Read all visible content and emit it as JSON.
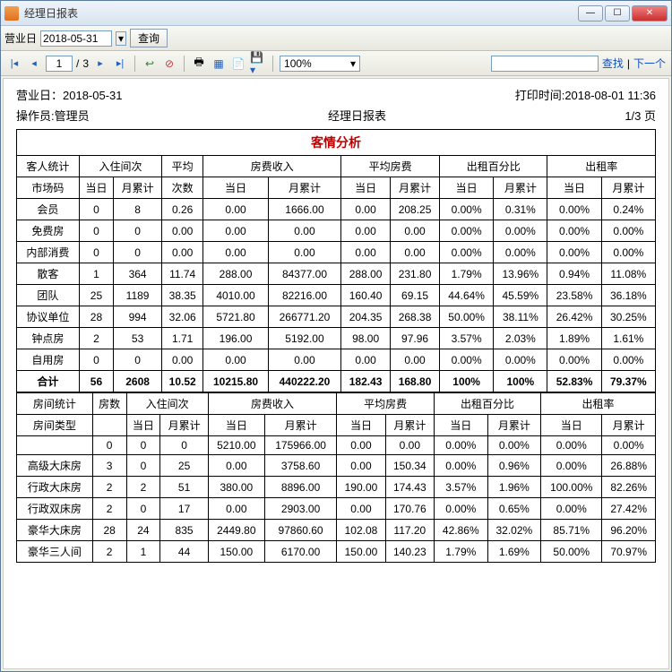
{
  "window": {
    "title": "经理日报表"
  },
  "toolbar1": {
    "label": "营业日",
    "date": "2018-05-31",
    "dateDisplay": "2018-05-31",
    "query": "查询",
    "dropdown": "▾"
  },
  "toolbar2": {
    "page": "1",
    "pages": "3",
    "of": "/",
    "zoom": "100%",
    "find": "查找",
    "next": "下一个"
  },
  "header": {
    "bizDayLabel": "营业日：",
    "bizDay": "2018-05-31",
    "printLabel": "打印时间:",
    "printTime": "2018-08-01 11:36",
    "operator": "操作员:管理员",
    "title": "经理日报表",
    "pager": "1/3 页"
  },
  "sectionTitle": "客情分析",
  "guestHeaders": {
    "c1": "客人统计",
    "c2": "入住间次",
    "c3": "平均",
    "c4": "房费收入",
    "c5": "平均房费",
    "c6": "出租百分比",
    "c7": "出租率",
    "s1": "市场码",
    "day": "当日",
    "mon": "月累计",
    "cnt": "次数"
  },
  "guestRows": [
    [
      "会员",
      "0",
      "8",
      "0.26",
      "0.00",
      "1666.00",
      "0.00",
      "208.25",
      "0.00%",
      "0.31%",
      "0.00%",
      "0.24%"
    ],
    [
      "免费房",
      "0",
      "0",
      "0.00",
      "0.00",
      "0.00",
      "0.00",
      "0.00",
      "0.00%",
      "0.00%",
      "0.00%",
      "0.00%"
    ],
    [
      "内部消费",
      "0",
      "0",
      "0.00",
      "0.00",
      "0.00",
      "0.00",
      "0.00",
      "0.00%",
      "0.00%",
      "0.00%",
      "0.00%"
    ],
    [
      "散客",
      "1",
      "364",
      "11.74",
      "288.00",
      "84377.00",
      "288.00",
      "231.80",
      "1.79%",
      "13.96%",
      "0.94%",
      "11.08%"
    ],
    [
      "团队",
      "25",
      "1189",
      "38.35",
      "4010.00",
      "82216.00",
      "160.40",
      "69.15",
      "44.64%",
      "45.59%",
      "23.58%",
      "36.18%"
    ],
    [
      "协议单位",
      "28",
      "994",
      "32.06",
      "5721.80",
      "266771.20",
      "204.35",
      "268.38",
      "50.00%",
      "38.11%",
      "26.42%",
      "30.25%"
    ],
    [
      "钟点房",
      "2",
      "53",
      "1.71",
      "196.00",
      "5192.00",
      "98.00",
      "97.96",
      "3.57%",
      "2.03%",
      "1.89%",
      "1.61%"
    ],
    [
      "自用房",
      "0",
      "0",
      "0.00",
      "0.00",
      "0.00",
      "0.00",
      "0.00",
      "0.00%",
      "0.00%",
      "0.00%",
      "0.00%"
    ]
  ],
  "guestTotal": [
    "合计",
    "56",
    "2608",
    "10.52",
    "10215.80",
    "440222.20",
    "182.43",
    "168.80",
    "100%",
    "100%",
    "52.83%",
    "79.37%"
  ],
  "roomHeaders": {
    "c1": "房间统计",
    "c2": "房数",
    "c3": "入住间次",
    "c4": "房费收入",
    "c5": "平均房费",
    "c6": "出租百分比",
    "c7": "出租率",
    "s1": "房间类型"
  },
  "roomRows": [
    [
      "",
      "0",
      "0",
      "0",
      "5210.00",
      "175966.00",
      "0.00",
      "0.00",
      "0.00%",
      "0.00%",
      "0.00%",
      "0.00%"
    ],
    [
      "高级大床房",
      "3",
      "0",
      "25",
      "0.00",
      "3758.60",
      "0.00",
      "150.34",
      "0.00%",
      "0.96%",
      "0.00%",
      "26.88%"
    ],
    [
      "行政大床房",
      "2",
      "2",
      "51",
      "380.00",
      "8896.00",
      "190.00",
      "174.43",
      "3.57%",
      "1.96%",
      "100.00%",
      "82.26%"
    ],
    [
      "行政双床房",
      "2",
      "0",
      "17",
      "0.00",
      "2903.00",
      "0.00",
      "170.76",
      "0.00%",
      "0.65%",
      "0.00%",
      "27.42%"
    ],
    [
      "豪华大床房",
      "28",
      "24",
      "835",
      "2449.80",
      "97860.60",
      "102.08",
      "117.20",
      "42.86%",
      "32.02%",
      "85.71%",
      "96.20%"
    ],
    [
      "豪华三人间",
      "2",
      "1",
      "44",
      "150.00",
      "6170.00",
      "150.00",
      "140.23",
      "1.79%",
      "1.69%",
      "50.00%",
      "70.97%"
    ]
  ],
  "colors": {
    "sectionTitle": "#c00000",
    "border": "#000000"
  }
}
